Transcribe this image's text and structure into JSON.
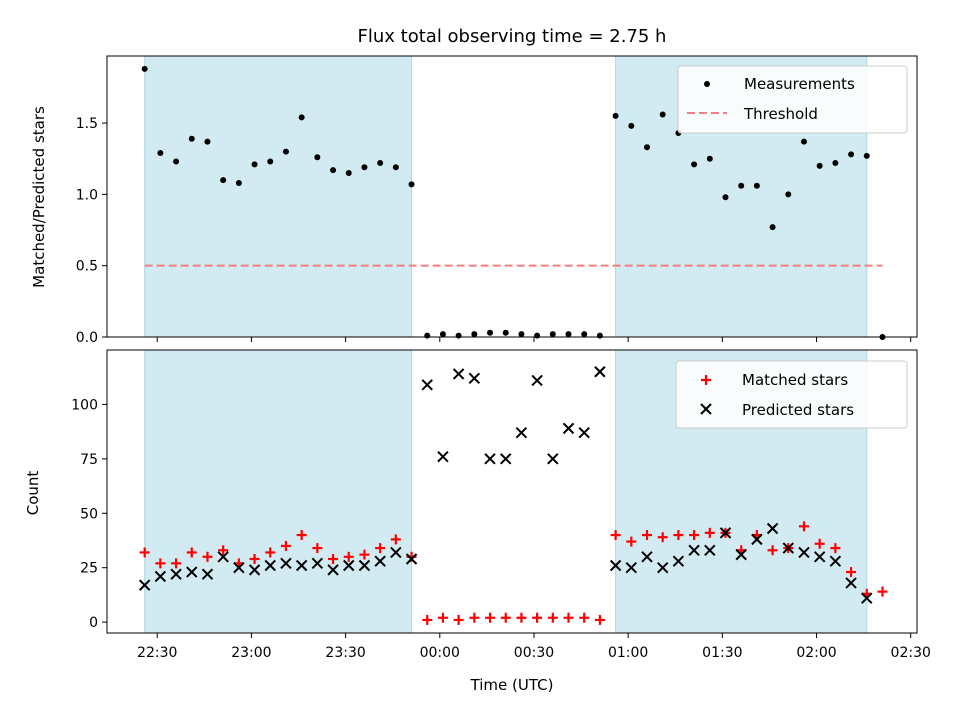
{
  "chart_data": {
    "type": "scatter",
    "title": "Flux total observing time = 2.75 h",
    "xlabel": "Time (UTC)",
    "xticks": [
      "22:30",
      "23:00",
      "23:30",
      "00:00",
      "00:30",
      "01:00",
      "01:30",
      "02:00",
      "02:30"
    ],
    "xlim_minutes_since_22_30": [
      -16,
      242
    ],
    "observing_windows": [
      {
        "start": "22:26",
        "end": "23:51"
      },
      {
        "start": "00:56",
        "end": "02:16"
      }
    ],
    "window_color": "#add8e6",
    "top_panel": {
      "ylabel": "Matched/Predicted stars",
      "ylim": [
        0,
        1.97
      ],
      "yticks": [
        "0.0",
        "0.5",
        "1.0",
        "1.5"
      ],
      "threshold": {
        "name": "Threshold",
        "value": 0.5,
        "x_start": "22:26",
        "x_end": "02:21",
        "color": "#f08080"
      },
      "series": [
        {
          "name": "Measurements",
          "color": "#000000",
          "x": [
            "22:26",
            "22:31",
            "22:36",
            "22:41",
            "22:46",
            "22:51",
            "22:56",
            "23:01",
            "23:06",
            "23:11",
            "23:16",
            "23:21",
            "23:26",
            "23:31",
            "23:36",
            "23:41",
            "23:46",
            "23:51",
            "23:56",
            "00:01",
            "00:06",
            "00:11",
            "00:16",
            "00:21",
            "00:26",
            "00:31",
            "00:36",
            "00:41",
            "00:46",
            "00:51",
            "00:56",
            "01:01",
            "01:06",
            "01:11",
            "01:16",
            "01:21",
            "01:26",
            "01:31",
            "01:36",
            "01:41",
            "01:46",
            "01:51",
            "01:56",
            "02:01",
            "02:06",
            "02:11",
            "02:16",
            "02:21"
          ],
          "y": [
            1.88,
            1.29,
            1.23,
            1.39,
            1.37,
            1.1,
            1.08,
            1.21,
            1.23,
            1.3,
            1.54,
            1.26,
            1.17,
            1.15,
            1.19,
            1.22,
            1.19,
            1.07,
            0.01,
            0.02,
            0.01,
            0.02,
            0.03,
            0.03,
            0.02,
            0.01,
            0.02,
            0.02,
            0.02,
            0.01,
            1.55,
            1.48,
            1.33,
            1.56,
            1.43,
            1.21,
            1.25,
            0.98,
            1.06,
            1.06,
            0.77,
            1.0,
            1.37,
            1.2,
            1.22,
            1.28,
            1.27,
            0.0
          ]
        }
      ]
    },
    "bottom_panel": {
      "ylabel": "Count",
      "ylim": [
        -5,
        125
      ],
      "yticks": [
        "0",
        "25",
        "50",
        "75",
        "100"
      ],
      "series": [
        {
          "name": "Matched stars",
          "color": "#ff0000",
          "marker": "+",
          "x": [
            "22:26",
            "22:31",
            "22:36",
            "22:41",
            "22:46",
            "22:51",
            "22:56",
            "23:01",
            "23:06",
            "23:11",
            "23:16",
            "23:21",
            "23:26",
            "23:31",
            "23:36",
            "23:41",
            "23:46",
            "23:51",
            "23:56",
            "00:01",
            "00:06",
            "00:11",
            "00:16",
            "00:21",
            "00:26",
            "00:31",
            "00:36",
            "00:41",
            "00:46",
            "00:51",
            "00:56",
            "01:01",
            "01:06",
            "01:11",
            "01:16",
            "01:21",
            "01:26",
            "01:31",
            "01:36",
            "01:41",
            "01:46",
            "01:51",
            "01:56",
            "02:01",
            "02:06",
            "02:11",
            "02:16",
            "02:21"
          ],
          "y": [
            32,
            27,
            27,
            32,
            30,
            33,
            27,
            29,
            32,
            35,
            40,
            34,
            29,
            30,
            31,
            34,
            38,
            30,
            1,
            2,
            1,
            2,
            2,
            2,
            2,
            2,
            2,
            2,
            2,
            1,
            40,
            37,
            40,
            39,
            40,
            40,
            41,
            41,
            33,
            40,
            33,
            34,
            44,
            36,
            34,
            23,
            13,
            14
          ]
        },
        {
          "name": "Predicted stars",
          "color": "#000000",
          "marker": "x",
          "x": [
            "22:26",
            "22:31",
            "22:36",
            "22:41",
            "22:46",
            "22:51",
            "22:56",
            "23:01",
            "23:06",
            "23:11",
            "23:16",
            "23:21",
            "23:26",
            "23:31",
            "23:36",
            "23:41",
            "23:46",
            "23:51",
            "23:56",
            "00:01",
            "00:06",
            "00:11",
            "00:16",
            "00:21",
            "00:26",
            "00:31",
            "00:36",
            "00:41",
            "00:46",
            "00:51",
            "00:56",
            "01:01",
            "01:06",
            "01:11",
            "01:16",
            "01:21",
            "01:26",
            "01:31",
            "01:36",
            "01:41",
            "01:46",
            "01:51",
            "01:56",
            "02:01",
            "02:06",
            "02:11",
            "02:16"
          ],
          "y": [
            17,
            21,
            22,
            23,
            22,
            30,
            25,
            24,
            26,
            27,
            26,
            27,
            24,
            26,
            26,
            28,
            32,
            29,
            109,
            76,
            114,
            112,
            75,
            75,
            87,
            111,
            75,
            89,
            87,
            115,
            26,
            25,
            30,
            25,
            28,
            33,
            33,
            41,
            31,
            38,
            43,
            34,
            32,
            30,
            28,
            18,
            11
          ]
        }
      ]
    }
  }
}
